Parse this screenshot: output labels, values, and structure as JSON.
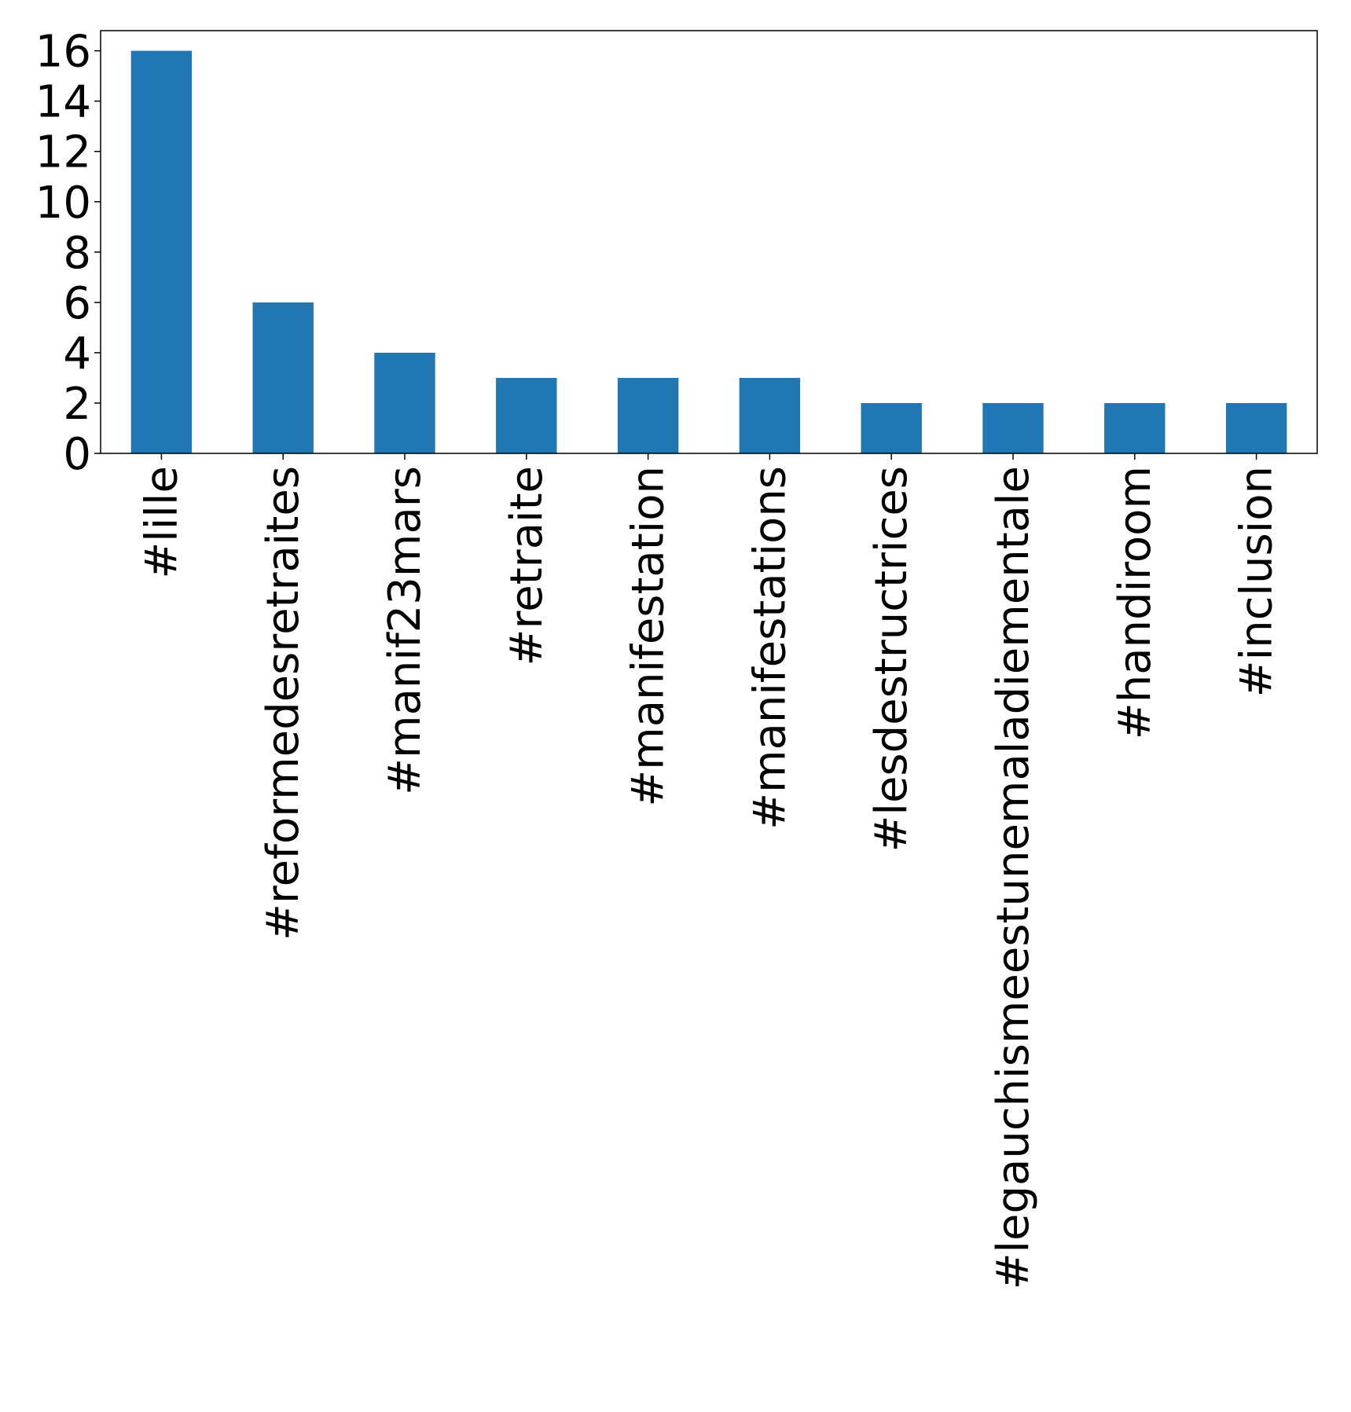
{
  "chart_data": {
    "type": "bar",
    "categories": [
      "#lille",
      "#reformedesretraites",
      "#manif23mars",
      "#retraite",
      "#manifestation",
      "#manifestations",
      "#lesdestructrices",
      "#legauchismeestunemaladiementale",
      "#handiroom",
      "#inclusion"
    ],
    "values": [
      16,
      6,
      4,
      3,
      3,
      3,
      2,
      2,
      2,
      2
    ],
    "title": "",
    "xlabel": "",
    "ylabel": "",
    "ylim": [
      0,
      16.8
    ],
    "yticks": [
      0,
      2,
      4,
      6,
      8,
      10,
      12,
      14,
      16
    ],
    "grid": false,
    "legend": "none",
    "bar_color": "#1f77b4"
  }
}
